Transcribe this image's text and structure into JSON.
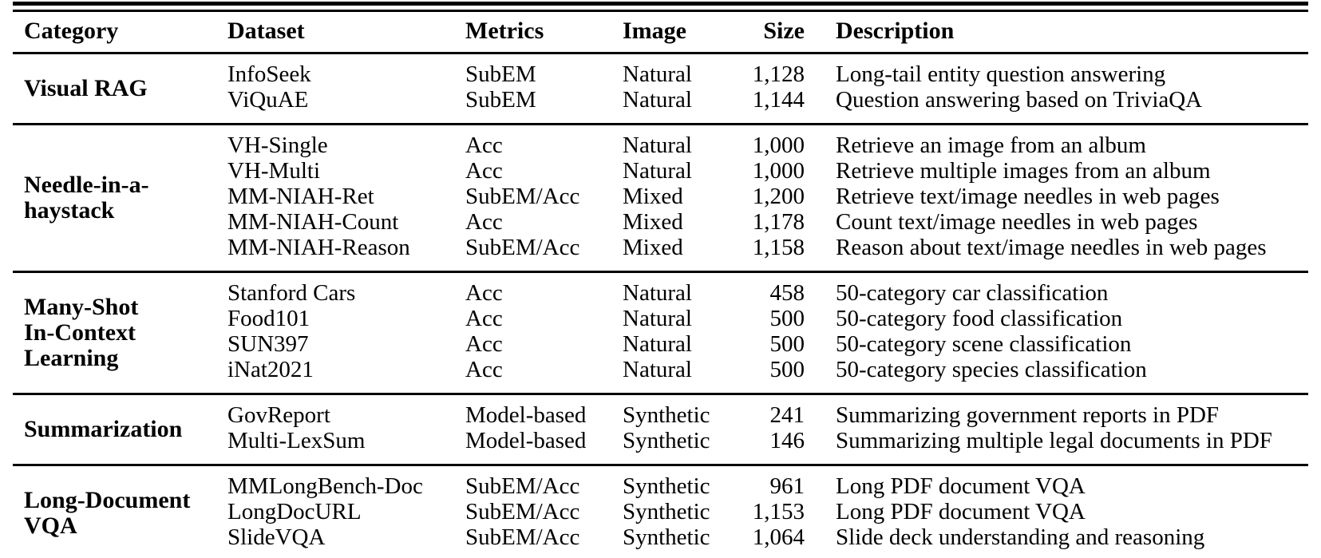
{
  "table": {
    "headers": [
      "Category",
      "Dataset",
      "Metrics",
      "Image",
      "Size",
      "Description"
    ],
    "sections": [
      {
        "category": "Visual RAG",
        "rows": [
          {
            "dataset": "InfoSeek",
            "metrics": "SubEM",
            "image": "Natural",
            "size": "1,128",
            "description": "Long-tail entity question answering"
          },
          {
            "dataset": "ViQuAE",
            "metrics": "SubEM",
            "image": "Natural",
            "size": "1,144",
            "description": "Question answering based on TriviaQA"
          }
        ]
      },
      {
        "category": "Needle-in-a-\nhaystack",
        "rows": [
          {
            "dataset": "VH-Single",
            "metrics": "Acc",
            "image": "Natural",
            "size": "1,000",
            "description": "Retrieve an image from an album"
          },
          {
            "dataset": "VH-Multi",
            "metrics": "Acc",
            "image": "Natural",
            "size": "1,000",
            "description": "Retrieve multiple images from an album"
          },
          {
            "dataset": "MM-NIAH-Ret",
            "metrics": "SubEM/Acc",
            "image": "Mixed",
            "size": "1,200",
            "description": "Retrieve text/image needles in web pages"
          },
          {
            "dataset": "MM-NIAH-Count",
            "metrics": "Acc",
            "image": "Mixed",
            "size": "1,178",
            "description": "Count text/image needles in web pages"
          },
          {
            "dataset": "MM-NIAH-Reason",
            "metrics": "SubEM/Acc",
            "image": "Mixed",
            "size": "1,158",
            "description": "Reason about text/image needles in web pages"
          }
        ]
      },
      {
        "category": "Many-Shot\nIn-Context\nLearning",
        "rows": [
          {
            "dataset": "Stanford Cars",
            "metrics": "Acc",
            "image": "Natural",
            "size": "458",
            "description": "50-category car classification"
          },
          {
            "dataset": "Food101",
            "metrics": "Acc",
            "image": "Natural",
            "size": "500",
            "description": "50-category food classification"
          },
          {
            "dataset": "SUN397",
            "metrics": "Acc",
            "image": "Natural",
            "size": "500",
            "description": "50-category scene classification"
          },
          {
            "dataset": "iNat2021",
            "metrics": "Acc",
            "image": "Natural",
            "size": "500",
            "description": "50-category species classification"
          }
        ]
      },
      {
        "category": "Summarization",
        "rows": [
          {
            "dataset": "GovReport",
            "metrics": "Model-based",
            "image": "Synthetic",
            "size": "241",
            "description": "Summarizing government reports in PDF"
          },
          {
            "dataset": "Multi-LexSum",
            "metrics": "Model-based",
            "image": "Synthetic",
            "size": "146",
            "description": "Summarizing multiple legal documents in PDF"
          }
        ]
      },
      {
        "category": "Long-Document\nVQA",
        "rows": [
          {
            "dataset": "MMLongBench-Doc",
            "metrics": "SubEM/Acc",
            "image": "Synthetic",
            "size": "961",
            "description": "Long PDF document VQA"
          },
          {
            "dataset": "LongDocURL",
            "metrics": "SubEM/Acc",
            "image": "Synthetic",
            "size": "1,153",
            "description": "Long PDF document VQA"
          },
          {
            "dataset": "SlideVQA",
            "metrics": "SubEM/Acc",
            "image": "Synthetic",
            "size": "1,064",
            "description": "Slide deck understanding and reasoning"
          }
        ]
      }
    ]
  }
}
